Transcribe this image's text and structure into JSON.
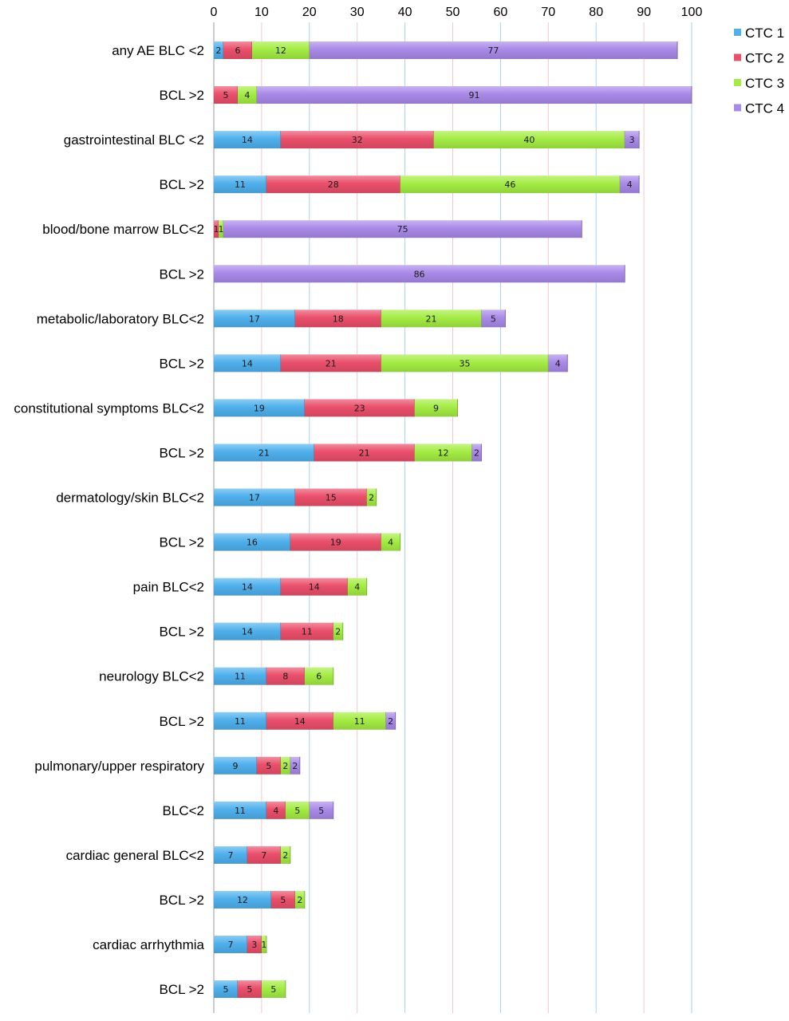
{
  "chart_data": {
    "type": "bar",
    "orientation": "horizontal",
    "stacked": true,
    "title": "",
    "xlabel": "",
    "ylabel": "",
    "xlim": [
      0,
      100
    ],
    "xticks": [
      "0",
      "10",
      "20",
      "30",
      "40",
      "50",
      "60",
      "70",
      "80",
      "90",
      "100"
    ],
    "x_axis_position": "top",
    "grid": true,
    "legend_position": "top-right",
    "colors": {
      "CTC 1": "#4fb0ec",
      "CTC 2": "#ea4f6b",
      "CTC 3": "#a4ec44",
      "CTC 4": "#a98ae8",
      "grid_blue": "#a9d2ea",
      "grid_red": "#f0c8cf"
    },
    "categories": [
      "any AE BLC <2",
      "BCL >2",
      "gastrointestinal BLC <2",
      "BCL >2",
      "blood/bone marrow BLC<2",
      "BCL >2",
      "metabolic/laboratory BLC<2",
      "BCL >2",
      "constitutional symptoms BLC<2",
      "BCL >2",
      "dermatology/skin BLC<2",
      "BCL >2",
      "pain BLC<2",
      "BCL >2",
      "neurology BLC<2",
      "BCL >2",
      "pulmonary/upper respiratory",
      "BLC<2",
      "cardiac general BLC<2",
      "BCL >2",
      "cardiac arrhythmia",
      "BCL >2"
    ],
    "series": [
      {
        "name": "CTC 1",
        "values": [
          2,
          0,
          14,
          11,
          0,
          0,
          17,
          14,
          19,
          21,
          17,
          16,
          14,
          14,
          11,
          11,
          9,
          11,
          7,
          12,
          7,
          5
        ]
      },
      {
        "name": "CTC 2",
        "values": [
          6,
          5,
          32,
          28,
          1,
          0,
          18,
          21,
          23,
          21,
          15,
          19,
          14,
          11,
          8,
          14,
          5,
          4,
          7,
          5,
          3,
          5
        ]
      },
      {
        "name": "CTC 3",
        "values": [
          12,
          4,
          40,
          46,
          1,
          0,
          21,
          35,
          9,
          12,
          2,
          4,
          4,
          2,
          6,
          11,
          2,
          5,
          2,
          2,
          1,
          5
        ]
      },
      {
        "name": "CTC 4",
        "values": [
          77,
          91,
          3,
          4,
          75,
          86,
          5,
          4,
          0,
          2,
          0,
          0,
          0,
          0,
          0,
          2,
          2,
          5,
          0,
          0,
          0,
          0
        ]
      }
    ]
  }
}
